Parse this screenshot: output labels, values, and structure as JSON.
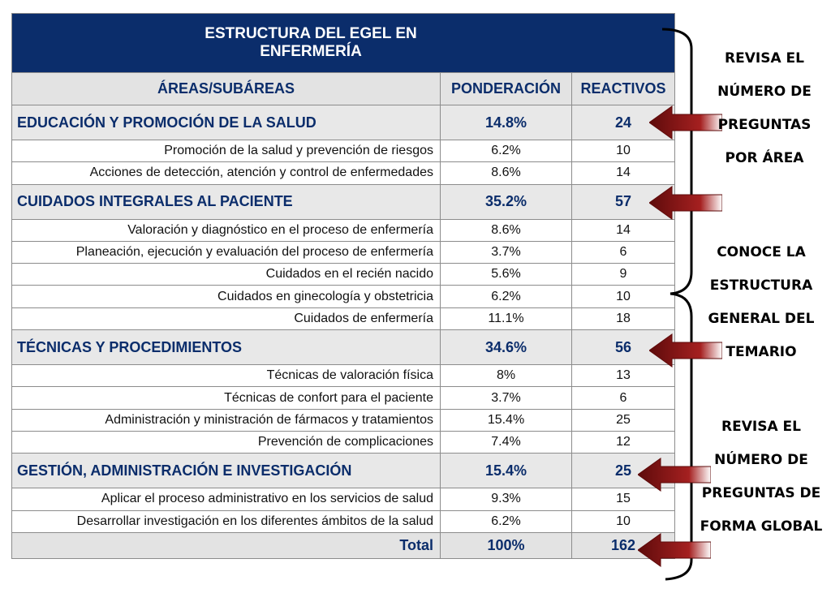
{
  "table": {
    "title_line1": "ESTRUCTURA DEL EGEL EN",
    "title_line2": "ENFERMERÍA",
    "headers": {
      "area": "ÁREAS/SUBÁREAS",
      "weight": "PONDERACIÓN",
      "items": "REACTIVOS"
    },
    "areas": [
      {
        "name": "EDUCACIÓN Y PROMOCIÓN DE LA SALUD",
        "weight": "14.8%",
        "items": "24",
        "subareas": [
          {
            "name": "Promoción de la salud y prevención de riesgos",
            "weight": "6.2%",
            "items": "10"
          },
          {
            "name": "Acciones de detección, atención y control de enfermedades",
            "weight": "8.6%",
            "items": "14"
          }
        ]
      },
      {
        "name": "CUIDADOS INTEGRALES AL PACIENTE",
        "weight": "35.2%",
        "items": "57",
        "subareas": [
          {
            "name": "Valoración y diagnóstico en el proceso de enfermería",
            "weight": "8.6%",
            "items": "14"
          },
          {
            "name": "Planeación, ejecución y evaluación del proceso de enfermería",
            "weight": "3.7%",
            "items": "6"
          },
          {
            "name": "Cuidados en el recién nacido",
            "weight": "5.6%",
            "items": "9"
          },
          {
            "name": "Cuidados en ginecología y obstetricia",
            "weight": "6.2%",
            "items": "10"
          },
          {
            "name": "Cuidados de enfermería",
            "weight": "11.1%",
            "items": "18"
          }
        ]
      },
      {
        "name": "TÉCNICAS Y PROCEDIMIENTOS",
        "weight": "34.6%",
        "items": "56",
        "subareas": [
          {
            "name": "Técnicas de valoración física",
            "weight": "8%",
            "items": "13"
          },
          {
            "name": "Técnicas de confort para el paciente",
            "weight": "3.7%",
            "items": "6"
          },
          {
            "name": "Administración y ministración de fármacos y tratamientos",
            "weight": "15.4%",
            "items": "25"
          },
          {
            "name": "Prevención de complicaciones",
            "weight": "7.4%",
            "items": "12"
          }
        ]
      },
      {
        "name": "GESTIÓN, ADMINISTRACIÓN E INVESTIGACIÓN",
        "weight": "15.4%",
        "items": "25",
        "subareas": [
          {
            "name": "Aplicar el proceso administrativo en los servicios de salud",
            "weight": "9.3%",
            "items": "15"
          },
          {
            "name": "Desarrollar investigación en los diferentes ámbitos de la salud",
            "weight": "6.2%",
            "items": "10"
          }
        ]
      }
    ],
    "total": {
      "label": "Total",
      "weight": "100%",
      "items": "162"
    }
  },
  "annotations": {
    "note1": [
      "REVISA EL",
      "NÚMERO DE",
      "PREGUNTAS",
      "POR ÁREA"
    ],
    "note2": [
      "CONOCE LA",
      "ESTRUCTURA",
      "GENERAL DEL",
      "TEMARIO"
    ],
    "note3": [
      "REVISA EL",
      "NÚMERO DE",
      "PREGUNTAS DE",
      "FORMA GLOBAL"
    ]
  },
  "colors": {
    "header_navy": "#0b2d6b",
    "arrow_red": "#8e1717",
    "area_row_bg": "#e8e8e8"
  }
}
